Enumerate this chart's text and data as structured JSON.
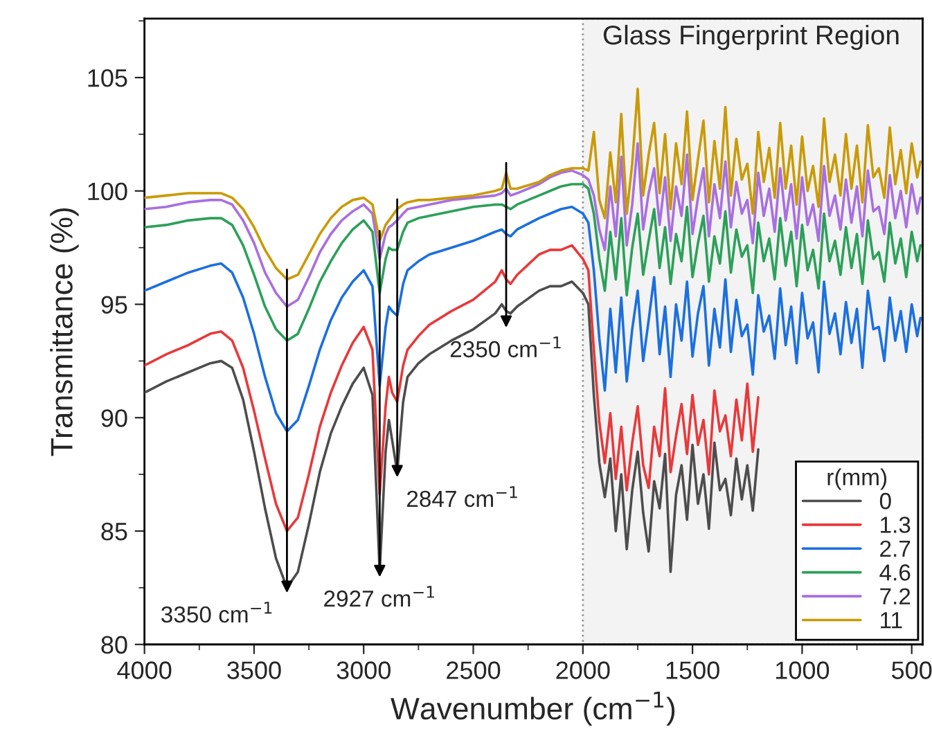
{
  "chart_data": {
    "type": "line",
    "xlabel": "Wavenumber (cm$^{−1}$)",
    "ylabel": "Transmittance (%)",
    "legend_title": "r(mm)",
    "legend": "bottom right",
    "grid": false,
    "x": [
      4000,
      3900,
      3800,
      3700,
      3650,
      3600,
      3550,
      3500,
      3450,
      3400,
      3350,
      3300,
      3250,
      3200,
      3150,
      3100,
      3050,
      3000,
      2960,
      2927,
      2900,
      2885,
      2870,
      2847,
      2820,
      2800,
      2750,
      2700,
      2600,
      2500,
      2400,
      2370,
      2350,
      2330,
      2300,
      2200,
      2150,
      2100,
      2050,
      2000,
      1975,
      1950,
      1925,
      1900,
      1875,
      1850,
      1825,
      1800,
      1775,
      1750,
      1725,
      1700,
      1675,
      1650,
      1625,
      1600,
      1575,
      1550,
      1525,
      1500,
      1475,
      1450,
      1425,
      1400,
      1375,
      1350,
      1325,
      1300,
      1275,
      1250,
      1225,
      1200,
      1175,
      1150,
      1125,
      1100,
      1075,
      1050,
      1025,
      1000,
      975,
      950,
      925,
      900,
      875,
      850,
      825,
      800,
      775,
      750,
      725,
      700,
      675,
      650,
      625,
      600,
      575,
      550,
      525,
      500,
      475,
      460
    ],
    "xlim": [
      4000,
      450
    ],
    "ylim": [
      80,
      107.6
    ],
    "xticks": [
      4000,
      3500,
      3000,
      2500,
      2000,
      1500,
      1000,
      500
    ],
    "yticks": [
      80,
      85,
      90,
      95,
      100,
      105
    ],
    "series": [
      {
        "name": "0",
        "color": "#4d4d4d",
        "values": [
          91.1,
          91.6,
          92.0,
          92.4,
          92.5,
          92.2,
          90.8,
          88.5,
          86.0,
          83.8,
          82.5,
          83.2,
          85.3,
          87.6,
          89.3,
          90.5,
          91.5,
          92.2,
          91.0,
          83.2,
          88.5,
          89.9,
          89.0,
          87.6,
          90.7,
          91.8,
          92.4,
          92.8,
          93.4,
          93.9,
          94.6,
          95.0,
          94.7,
          94.6,
          94.9,
          95.6,
          95.8,
          95.8,
          96.0,
          95.5,
          95.0,
          91.0,
          88.0,
          86.5,
          88.2,
          85.0,
          87.5,
          84.2,
          86.8,
          88.5,
          85.8,
          84.1,
          87.2,
          86.0,
          88.4,
          83.2,
          86.6,
          87.9,
          85.5,
          88.8,
          86.2,
          87.5,
          85.1,
          88.9,
          86.8,
          87.3,
          85.7,
          88.2,
          86.4,
          87.9,
          85.9,
          88.6,
          null,
          null,
          null,
          null,
          null,
          null,
          null,
          null,
          null,
          null,
          null,
          null,
          null,
          null,
          null,
          null,
          null,
          null,
          null,
          null,
          null,
          null,
          null,
          null,
          null,
          null,
          null,
          null,
          null,
          null
        ]
      },
      {
        "name": "1.3",
        "color": "#e8393b",
        "values": [
          92.3,
          92.8,
          93.2,
          93.7,
          93.8,
          93.4,
          92.2,
          90.3,
          88.2,
          86.2,
          85.0,
          85.6,
          87.5,
          89.6,
          91.1,
          92.3,
          93.3,
          94.0,
          93.0,
          86.6,
          90.5,
          91.8,
          91.1,
          90.7,
          92.3,
          93.0,
          93.6,
          94.1,
          94.7,
          95.2,
          96.0,
          96.5,
          96.1,
          95.9,
          96.3,
          97.2,
          97.4,
          97.4,
          97.6,
          97.0,
          96.5,
          93.0,
          89.8,
          88.0,
          90.2,
          87.3,
          89.6,
          86.8,
          88.9,
          90.5,
          87.9,
          86.9,
          89.6,
          88.3,
          91.3,
          87.6,
          89.2,
          90.6,
          88.4,
          91.0,
          88.8,
          89.9,
          87.5,
          91.2,
          89.4,
          90.1,
          88.3,
          90.8,
          89.0,
          91.5,
          88.5,
          90.9,
          null,
          null,
          null,
          null,
          null,
          null,
          null,
          null,
          null,
          null,
          null,
          null,
          null,
          null,
          null,
          null,
          null,
          null,
          null,
          null,
          null,
          null,
          null,
          null,
          null,
          null,
          null,
          null,
          null,
          null
        ]
      },
      {
        "name": "2.7",
        "color": "#1b6fe0",
        "values": [
          95.6,
          96.0,
          96.4,
          96.7,
          96.8,
          96.4,
          95.3,
          93.7,
          91.8,
          90.2,
          89.4,
          89.9,
          91.4,
          93.0,
          94.3,
          95.3,
          96.0,
          96.5,
          95.8,
          91.4,
          94.0,
          94.9,
          94.7,
          94.5,
          95.9,
          96.5,
          96.9,
          97.2,
          97.5,
          97.8,
          98.2,
          98.3,
          98.1,
          98.0,
          98.3,
          98.8,
          99.0,
          99.2,
          99.3,
          99.0,
          98.6,
          96.5,
          93.5,
          91.2,
          94.8,
          92.0,
          95.3,
          91.6,
          93.9,
          95.6,
          92.5,
          94.3,
          96.2,
          92.8,
          94.9,
          91.8,
          95.0,
          93.4,
          96.0,
          92.7,
          94.6,
          95.8,
          92.3,
          94.8,
          93.1,
          96.1,
          92.9,
          95.2,
          93.6,
          94.1,
          91.9,
          95.4,
          93.8,
          94.5,
          92.6,
          95.7,
          93.2,
          94.9,
          92.4,
          95.5,
          93.5,
          94.2,
          92.0,
          96.0,
          93.7,
          94.6,
          92.8,
          95.1,
          93.3,
          94.8,
          92.2,
          95.6,
          93.9,
          94.0,
          92.5,
          95.3,
          93.4,
          94.7,
          92.9,
          95.0,
          93.6,
          94.4
        ]
      },
      {
        "name": "4.6",
        "color": "#2ca05a",
        "values": [
          98.4,
          98.5,
          98.7,
          98.8,
          98.8,
          98.5,
          97.6,
          96.3,
          94.9,
          93.9,
          93.4,
          93.7,
          94.8,
          96.0,
          96.9,
          97.7,
          98.3,
          98.7,
          98.2,
          95.5,
          97.0,
          97.5,
          97.4,
          97.4,
          98.2,
          98.6,
          98.8,
          98.9,
          99.1,
          99.3,
          99.4,
          99.4,
          99.3,
          99.2,
          99.4,
          99.8,
          100.0,
          100.2,
          100.3,
          100.3,
          100.1,
          99.0,
          97.0,
          95.6,
          98.2,
          96.1,
          98.8,
          95.4,
          97.5,
          99.0,
          96.3,
          97.8,
          99.2,
          96.6,
          98.4,
          95.9,
          98.1,
          96.9,
          99.3,
          96.2,
          97.7,
          98.9,
          96.0,
          98.0,
          96.8,
          99.1,
          96.4,
          98.3,
          97.1,
          97.6,
          95.5,
          98.6,
          96.9,
          97.9,
          96.1,
          98.8,
          96.7,
          98.2,
          95.8,
          98.5,
          96.5,
          97.4,
          95.7,
          99.0,
          96.9,
          97.8,
          96.3,
          98.4,
          96.6,
          98.1,
          95.9,
          98.7,
          97.0,
          97.3,
          96.0,
          98.6,
          96.8,
          97.9,
          96.2,
          98.2,
          96.9,
          97.6
        ]
      },
      {
        "name": "7.2",
        "color": "#a86fe0",
        "values": [
          99.2,
          99.3,
          99.5,
          99.6,
          99.6,
          99.4,
          98.7,
          97.7,
          96.4,
          95.5,
          94.9,
          95.2,
          96.2,
          97.3,
          98.1,
          98.7,
          99.1,
          99.4,
          99.0,
          97.0,
          98.1,
          98.4,
          98.5,
          98.7,
          99.0,
          99.2,
          99.3,
          99.4,
          99.6,
          99.7,
          99.8,
          99.9,
          100.1,
          99.8,
          99.9,
          100.3,
          100.6,
          100.8,
          100.9,
          100.7,
          100.5,
          99.8,
          98.3,
          97.4,
          100.2,
          98.0,
          101.5,
          97.6,
          99.4,
          102.1,
          98.3,
          99.9,
          101.0,
          98.5,
          100.6,
          97.8,
          100.2,
          98.9,
          101.6,
          98.1,
          99.7,
          101.0,
          98.0,
          100.3,
          98.8,
          101.3,
          98.4,
          100.4,
          99.0,
          99.6,
          97.7,
          100.8,
          98.9,
          100.1,
          98.2,
          101.0,
          98.7,
          100.3,
          97.9,
          100.6,
          98.5,
          99.4,
          97.8,
          101.1,
          98.9,
          99.8,
          98.3,
          100.5,
          98.6,
          100.2,
          98.0,
          100.9,
          99.1,
          99.3,
          98.1,
          100.7,
          98.8,
          100.0,
          98.4,
          100.3,
          99.0,
          99.7
        ]
      },
      {
        "name": "11",
        "color": "#c99a06",
        "values": [
          99.7,
          99.8,
          99.9,
          99.9,
          99.9,
          99.7,
          99.2,
          98.4,
          97.4,
          96.6,
          96.1,
          96.3,
          97.2,
          98.1,
          98.8,
          99.3,
          99.6,
          99.7,
          99.4,
          97.8,
          98.5,
          98.7,
          98.9,
          99.2,
          99.4,
          99.5,
          99.6,
          99.6,
          99.7,
          99.8,
          100.0,
          100.1,
          100.8,
          100.1,
          100.1,
          100.4,
          100.7,
          100.9,
          101.0,
          101.0,
          100.9,
          102.6,
          99.6,
          98.8,
          101.7,
          99.5,
          103.4,
          99.0,
          101.2,
          104.5,
          99.8,
          101.6,
          103.0,
          99.9,
          102.5,
          99.2,
          102.1,
          100.3,
          103.5,
          99.6,
          101.4,
          103.1,
          99.5,
          102.2,
          100.1,
          103.7,
          99.8,
          102.3,
          100.5,
          101.2,
          99.0,
          102.6,
          100.4,
          101.9,
          99.7,
          103.0,
          100.1,
          102.0,
          99.4,
          102.4,
          100.0,
          101.1,
          99.3,
          103.2,
          100.4,
          101.6,
          99.8,
          102.5,
          100.1,
          102.0,
          99.5,
          102.9,
          100.6,
          101.0,
          99.7,
          102.8,
          100.3,
          101.8,
          99.9,
          102.1,
          100.6,
          101.3
        ]
      }
    ],
    "bands": [
      {
        "axis": "x",
        "from": 2000,
        "to": 450,
        "label": "Glass Fingerprint Region",
        "color": "#f3f3f3"
      }
    ],
    "annotations": [
      {
        "text": "3350 cm$^{−1}$",
        "x": 3350,
        "y": 82.5
      },
      {
        "text": "2927 cm$^{−1}$",
        "x": 2927,
        "y": 83.2
      },
      {
        "text": "2847 cm$^{−1}$",
        "x": 2847,
        "y": 87.6
      },
      {
        "text": "2350 cm$^{−1}$",
        "x": 2350,
        "y": 94.7
      }
    ]
  }
}
